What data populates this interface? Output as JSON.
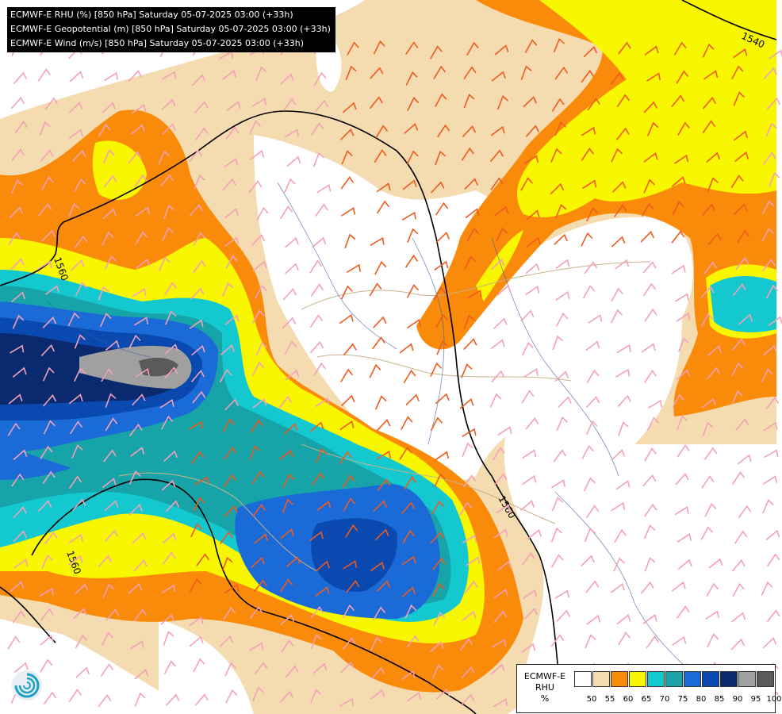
{
  "header": {
    "lines": [
      "ECMWF-E RHU (%) [850 hPa] Saturday 05-07-2025 03:00 (+33h)",
      "ECMWF-E Geopotential (m) [850 hPa] Saturday 05-07-2025 03:00 (+33h)",
      "ECMWF-E Wind (m/s) [850 hPa] Saturday 05-07-2025 03:00 (+33h)"
    ]
  },
  "contour_labels": [
    "1540",
    "1560",
    "1560",
    "1560"
  ],
  "legend": {
    "title_line1": "ECMWF-E",
    "title_line2": "RHU",
    "unit": "%",
    "colors": [
      "#ffffff",
      "#f5dcb0",
      "#f98a0a",
      "#f8f600",
      "#14c8cf",
      "#16a4a8",
      "#1a6ad8",
      "#0a4ab0",
      "#0a2a70",
      "#a0a0a0",
      "#5a5a5a"
    ],
    "ticks": [
      "50",
      "55",
      "60",
      "65",
      "70",
      "75",
      "80",
      "85",
      "90",
      "95",
      "100"
    ]
  },
  "icons": {
    "logo": "ecmwf-logo-icon",
    "barb": "wind-barb-icon"
  }
}
